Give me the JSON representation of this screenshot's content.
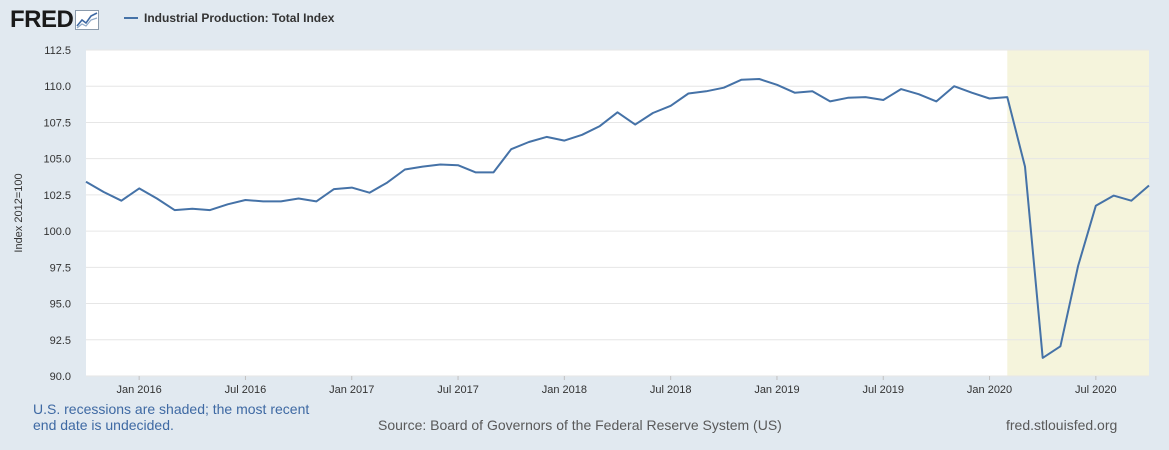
{
  "header": {
    "logo_text": "FRED",
    "logo_icon": "fred-chart-icon"
  },
  "colors": {
    "background": "#e1e9f0",
    "plot_background": "#ffffff",
    "series_line": "#4572a7",
    "recession_shade": "#f5f4dc",
    "grid": "#e6e6e6",
    "axis_text": "#333333",
    "note_text": "#3e69a3"
  },
  "footer": {
    "recession_note": "U.S. recessions are shaded; the most recent end date is undecided.",
    "source": "Source: Board of Governors of the Federal Reserve System (US)",
    "url": "fred.stlouisfed.org"
  },
  "chart_data": {
    "type": "line",
    "title": "",
    "xlabel": "",
    "ylabel": "Index 2012=100",
    "ylim": [
      90.0,
      112.5
    ],
    "yticks": [
      "90.0",
      "92.5",
      "95.0",
      "97.5",
      "100.0",
      "102.5",
      "105.0",
      "107.5",
      "110.0",
      "112.5"
    ],
    "xticks": [
      {
        "date": "2016-01",
        "label": "Jan 2016"
      },
      {
        "date": "2016-07",
        "label": "Jul 2016"
      },
      {
        "date": "2017-01",
        "label": "Jan 2017"
      },
      {
        "date": "2017-07",
        "label": "Jul 2017"
      },
      {
        "date": "2018-01",
        "label": "Jan 2018"
      },
      {
        "date": "2018-07",
        "label": "Jul 2018"
      },
      {
        "date": "2019-01",
        "label": "Jan 2019"
      },
      {
        "date": "2019-07",
        "label": "Jul 2019"
      },
      {
        "date": "2020-01",
        "label": "Jan 2020"
      },
      {
        "date": "2020-07",
        "label": "Jul 2020"
      }
    ],
    "grid": true,
    "legend_position": "top-left",
    "recession": {
      "start": "2020-02",
      "end": "2020-10"
    },
    "series": [
      {
        "name": "Industrial Production: Total Index",
        "x": [
          "2015-10",
          "2015-11",
          "2015-12",
          "2016-01",
          "2016-02",
          "2016-03",
          "2016-04",
          "2016-05",
          "2016-06",
          "2016-07",
          "2016-08",
          "2016-09",
          "2016-10",
          "2016-11",
          "2016-12",
          "2017-01",
          "2017-02",
          "2017-03",
          "2017-04",
          "2017-05",
          "2017-06",
          "2017-07",
          "2017-08",
          "2017-09",
          "2017-10",
          "2017-11",
          "2017-12",
          "2018-01",
          "2018-02",
          "2018-03",
          "2018-04",
          "2018-05",
          "2018-06",
          "2018-07",
          "2018-08",
          "2018-09",
          "2018-10",
          "2018-11",
          "2018-12",
          "2019-01",
          "2019-02",
          "2019-03",
          "2019-04",
          "2019-05",
          "2019-06",
          "2019-07",
          "2019-08",
          "2019-09",
          "2019-10",
          "2019-11",
          "2019-12",
          "2020-01",
          "2020-02",
          "2020-03",
          "2020-04",
          "2020-05",
          "2020-06",
          "2020-07",
          "2020-08",
          "2020-09",
          "2020-10"
        ],
        "values": [
          103.4,
          102.7,
          102.1,
          102.95,
          102.25,
          101.45,
          101.55,
          101.45,
          101.85,
          102.15,
          102.05,
          102.05,
          102.25,
          102.05,
          102.9,
          103.0,
          102.65,
          103.35,
          104.25,
          104.45,
          104.6,
          104.55,
          104.05,
          104.05,
          105.65,
          106.15,
          106.5,
          106.25,
          106.65,
          107.25,
          108.2,
          107.35,
          108.15,
          108.65,
          109.5,
          109.65,
          109.9,
          110.45,
          110.5,
          110.1,
          109.55,
          109.65,
          108.95,
          109.2,
          109.25,
          109.05,
          109.8,
          109.45,
          108.95,
          110.0,
          109.55,
          109.15,
          109.25,
          104.45,
          91.25,
          92.05,
          97.6,
          101.75,
          102.45,
          102.1,
          103.15
        ]
      }
    ]
  }
}
